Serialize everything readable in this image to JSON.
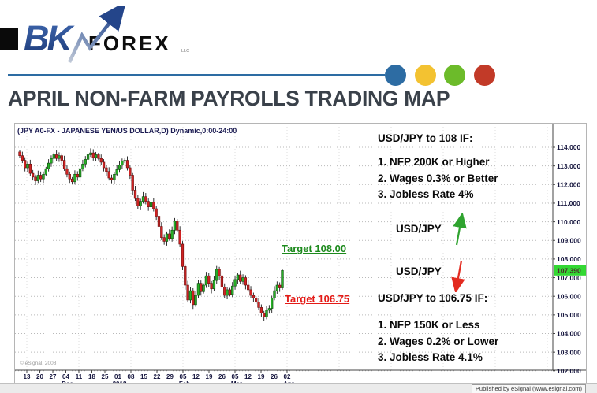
{
  "header": {
    "logo": {
      "bk": "BK",
      "forex": "FOREX",
      "llc": "LLC"
    },
    "palette_dots": [
      "#2d6ca3",
      "#f3c231",
      "#6cbb2a",
      "#c23a28"
    ],
    "rule_color": "#2d6ca3",
    "title": "APRIL NON-FARM PAYROLLS TRADING MAP"
  },
  "chart_data": {
    "type": "candlestick",
    "title": "(JPY A0-FX - JAPANESE YEN/US DOLLAR,D) Dynamic,0:00-24:00",
    "y_axis": {
      "min": 102,
      "max": 114,
      "ticks": [
        "114.000",
        "113.000",
        "112.000",
        "111.000",
        "110.000",
        "109.000",
        "108.000",
        "107.000",
        "106.000",
        "105.000",
        "104.000",
        "103.000",
        "102.000"
      ]
    },
    "current_price": 107.39,
    "current_price_label": "107.390",
    "x_ticks": [
      {
        "label": "13"
      },
      {
        "label": "20"
      },
      {
        "label": "27"
      },
      {
        "label": "04",
        "month": "Dec"
      },
      {
        "label": "11"
      },
      {
        "label": "18"
      },
      {
        "label": "25"
      },
      {
        "label": "01",
        "month": "2018"
      },
      {
        "label": "08"
      },
      {
        "label": "15"
      },
      {
        "label": "22"
      },
      {
        "label": "29"
      },
      {
        "label": "05",
        "month": "Feb"
      },
      {
        "label": "12"
      },
      {
        "label": "19"
      },
      {
        "label": "26"
      },
      {
        "label": "05",
        "month": "Mar"
      },
      {
        "label": "12"
      },
      {
        "label": "19"
      },
      {
        "label": "26"
      },
      {
        "label": "02",
        "month": "Apr"
      }
    ],
    "first_open": 113.75,
    "closes": [
      113.55,
      113.3,
      112.9,
      113.1,
      112.6,
      112.4,
      112.2,
      112.5,
      112.3,
      112.55,
      112.85,
      113.15,
      113.4,
      113.6,
      113.4,
      113.55,
      113.3,
      112.85,
      112.55,
      112.3,
      112.15,
      112.55,
      112.4,
      112.85,
      113.1,
      113.35,
      113.6,
      113.7,
      113.45,
      113.6,
      113.4,
      113.2,
      112.9,
      112.7,
      112.35,
      112.25,
      112.55,
      112.8,
      113.05,
      113.25,
      113.3,
      112.9,
      112.5,
      111.7,
      111.25,
      110.85,
      111.1,
      111.35,
      111.1,
      110.8,
      111.05,
      110.7,
      110.3,
      109.75,
      109.15,
      108.95,
      109.35,
      109.1,
      109.55,
      110.05,
      109.55,
      108.8,
      107.6,
      106.6,
      105.8,
      106.3,
      105.55,
      106.05,
      106.7,
      106.25,
      106.6,
      107.1,
      106.7,
      106.4,
      106.85,
      107.45,
      107.1,
      106.5,
      106.05,
      106.35,
      106.1,
      106.55,
      106.9,
      107.15,
      106.8,
      107.0,
      106.6,
      106.35,
      106.05,
      105.9,
      105.7,
      105.4,
      105.1,
      104.9,
      105.25,
      105.35,
      105.9,
      106.3,
      106.6,
      106.45,
      107.39
    ],
    "colors": {
      "up": "#27b027",
      "up_stroke": "#0b4d0b",
      "down": "#d02323",
      "down_stroke": "#6b0e0e",
      "price_tag": "#33d833",
      "arrow_up": "#2fa32f",
      "arrow_down": "#e32b20"
    }
  },
  "annotations": {
    "target_up": "Target 108.00",
    "target_down": "Target 106.75",
    "scenario_up": {
      "title": "USD/JPY to 108 IF:",
      "items": [
        "1. NFP 200K or Higher",
        "2. Wages 0.3% or Better",
        "3. Jobless Rate 4%"
      ]
    },
    "pair_up": "USD/JPY",
    "pair_down": "USD/JPY",
    "scenario_down": {
      "title": "USD/JPY to 106.75 IF:",
      "items": [
        "1. NFP 150K or Less",
        "2. Wages 0.2% or Lower",
        "3. Jobless Rate 4.1%"
      ]
    },
    "watermark": "© eSignal, 2008"
  },
  "footer": {
    "published": "Published by eSignal (www.esignal.com)"
  }
}
